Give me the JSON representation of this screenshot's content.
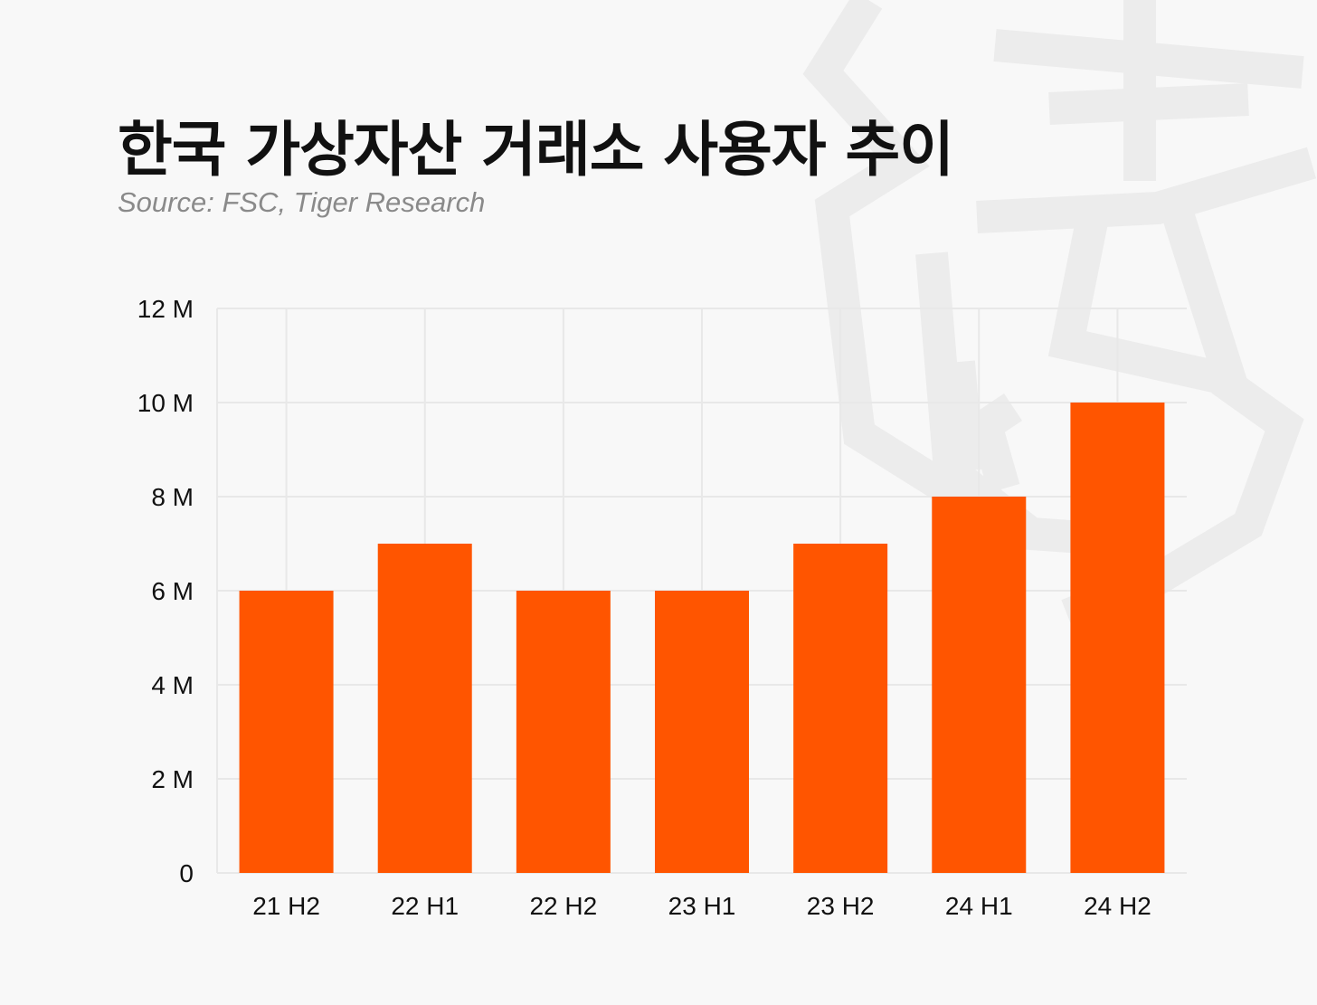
{
  "chart_data": {
    "type": "bar",
    "title": "한국 가상자산 거래소 사용자 추이",
    "subtitle": "Source: FSC, Tiger Research",
    "categories": [
      "21 H2",
      "22 H1",
      "22 H2",
      "23 H1",
      "23 H2",
      "24 H1",
      "24 H2"
    ],
    "values": [
      6,
      7,
      6,
      6,
      7,
      8,
      10
    ],
    "unit": "M",
    "ylim": [
      0,
      12
    ],
    "yticks": [
      {
        "value": 0,
        "label": "0"
      },
      {
        "value": 2,
        "label": "2 M"
      },
      {
        "value": 4,
        "label": "4 M"
      },
      {
        "value": 6,
        "label": "6 M"
      },
      {
        "value": 8,
        "label": "8 M"
      },
      {
        "value": 10,
        "label": "10 M"
      },
      {
        "value": 12,
        "label": "12 M"
      }
    ],
    "xlabel": "",
    "ylabel": "",
    "grid": true,
    "colors": {
      "bar": "#ff5500",
      "grid": "#e8e8e8",
      "watermark": "#ececec"
    }
  },
  "icons": {
    "watermark": "tiger-logo-icon"
  }
}
